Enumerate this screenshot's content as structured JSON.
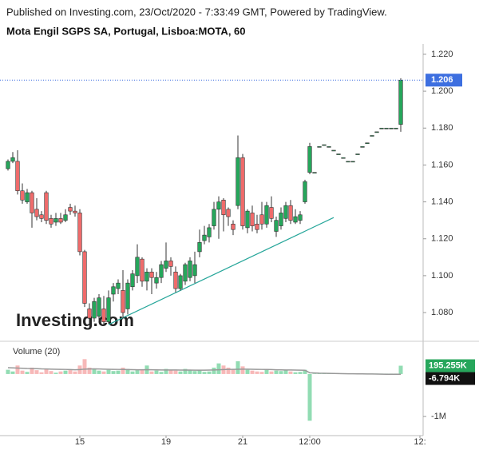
{
  "published": "Published on Investing.com, 23/Oct/2020 - 7:33:49 GMT, Powered by TradingView.",
  "chart_data": {
    "type": "candlestick",
    "title": "Mota Engil SGPS SA, Portugal, Lisboa:MOTA, 60",
    "watermark": "Investing.com",
    "categories": [
      null,
      null,
      null,
      null,
      null,
      null,
      null,
      null,
      null,
      null,
      null,
      null,
      null,
      null,
      null,
      "15",
      null,
      null,
      null,
      null,
      null,
      null,
      null,
      null,
      null,
      null,
      null,
      null,
      null,
      null,
      null,
      null,
      null,
      "19",
      null,
      null,
      null,
      null,
      null,
      null,
      null,
      null,
      null,
      null,
      null,
      null,
      null,
      null,
      null,
      "21",
      null,
      null,
      null,
      null,
      null,
      null,
      null,
      null,
      null,
      null,
      null,
      null,
      null,
      "12:00",
      null,
      null,
      null,
      null,
      null,
      null,
      null,
      null,
      null,
      null,
      null,
      null,
      null,
      null,
      null,
      null,
      null,
      null,
      null,
      null,
      null,
      null,
      "12:"
    ],
    "open": [
      1.158,
      1.162,
      1.162,
      1.146,
      1.14,
      1.145,
      1.136,
      1.133,
      1.145,
      1.131,
      1.129,
      1.131,
      1.13,
      1.137,
      1.135,
      1.134,
      1.113,
      1.082,
      1.077,
      1.078,
      1.082,
      1.075,
      1.09,
      1.093,
      1.092,
      1.082,
      1.094,
      1.1,
      1.109,
      1.097,
      1.102,
      1.096,
      1.099,
      1.104,
      1.108,
      1.102,
      1.093,
      1.097,
      1.099,
      1.1,
      1.113,
      1.119,
      1.121,
      1.127,
      1.136,
      1.141,
      1.136,
      1.128,
      1.138,
      1.164,
      1.126,
      1.134,
      1.128,
      1.133,
      1.128,
      1.137,
      1.124,
      1.127,
      1.131,
      1.138,
      1.129,
      1.13,
      1.14,
      1.156,
      1.156,
      1.17,
      1.171,
      1.17,
      1.168,
      1.166,
      1.164,
      1.162,
      1.162,
      1.166,
      1.17,
      1.172,
      1.176,
      1.178,
      1.18,
      1.18,
      1.18,
      1.18,
      1.182,
      null,
      null,
      null,
      null
    ],
    "high": [
      1.163,
      1.167,
      1.168,
      1.15,
      1.147,
      1.146,
      1.142,
      1.135,
      1.146,
      1.133,
      1.134,
      1.134,
      1.136,
      1.139,
      1.138,
      1.136,
      1.114,
      1.085,
      1.088,
      1.09,
      1.089,
      1.092,
      1.096,
      1.098,
      1.103,
      1.098,
      1.103,
      1.117,
      1.11,
      1.104,
      1.104,
      1.102,
      1.108,
      1.118,
      1.11,
      1.105,
      1.101,
      1.107,
      1.11,
      1.113,
      1.125,
      1.127,
      1.128,
      1.14,
      1.143,
      1.142,
      1.137,
      1.13,
      1.176,
      1.166,
      1.136,
      1.138,
      1.133,
      1.14,
      1.14,
      1.143,
      1.132,
      1.137,
      1.14,
      1.141,
      1.136,
      1.135,
      1.152,
      1.172,
      1.156,
      1.17,
      1.171,
      1.17,
      1.168,
      1.166,
      1.164,
      1.162,
      1.162,
      1.166,
      1.17,
      1.172,
      1.176,
      1.178,
      1.18,
      1.18,
      1.18,
      1.18,
      1.207,
      null,
      null,
      null,
      null
    ],
    "low": [
      1.157,
      1.161,
      1.144,
      1.139,
      1.139,
      1.126,
      1.13,
      1.129,
      1.128,
      1.126,
      1.127,
      1.128,
      1.129,
      1.133,
      1.132,
      1.111,
      1.083,
      1.073,
      1.075,
      1.076,
      1.073,
      1.074,
      1.086,
      1.09,
      1.077,
      1.079,
      1.092,
      1.096,
      1.094,
      1.092,
      1.09,
      1.093,
      1.096,
      1.102,
      1.1,
      1.091,
      1.092,
      1.095,
      1.097,
      1.096,
      1.11,
      1.117,
      1.118,
      1.125,
      1.12,
      1.124,
      1.127,
      1.122,
      1.136,
      1.125,
      1.123,
      1.124,
      1.123,
      1.125,
      1.126,
      1.129,
      1.121,
      1.125,
      1.129,
      1.128,
      1.128,
      1.128,
      1.139,
      1.155,
      1.156,
      1.17,
      1.171,
      1.17,
      1.168,
      1.166,
      1.164,
      1.162,
      1.162,
      1.166,
      1.17,
      1.172,
      1.176,
      1.178,
      1.18,
      1.18,
      1.18,
      1.18,
      1.178,
      null,
      null,
      null,
      null
    ],
    "close": [
      1.162,
      1.164,
      1.146,
      1.141,
      1.145,
      1.134,
      1.132,
      1.131,
      1.13,
      1.128,
      1.131,
      1.129,
      1.133,
      1.135,
      1.134,
      1.113,
      1.085,
      1.077,
      1.086,
      1.088,
      1.075,
      1.088,
      1.094,
      1.096,
      1.08,
      1.096,
      1.101,
      1.11,
      1.097,
      1.102,
      1.099,
      1.099,
      1.106,
      1.108,
      1.105,
      1.093,
      1.1,
      1.106,
      1.108,
      1.106,
      1.118,
      1.122,
      1.126,
      1.136,
      1.14,
      1.133,
      1.132,
      1.125,
      1.164,
      1.127,
      1.135,
      1.127,
      1.125,
      1.128,
      1.138,
      1.131,
      1.13,
      1.134,
      1.138,
      1.13,
      1.132,
      1.133,
      1.151,
      1.17,
      1.156,
      1.17,
      1.171,
      1.17,
      1.168,
      1.166,
      1.164,
      1.162,
      1.162,
      1.166,
      1.17,
      1.172,
      1.176,
      1.178,
      1.18,
      1.18,
      1.18,
      1.18,
      1.206,
      null,
      null,
      null,
      null
    ],
    "up_color": "#26a65b",
    "down_color": "#ef6b6b",
    "last_price_color": "#3d6fe0",
    "ylim": [
      1.0653,
      1.2256
    ],
    "yticks": [
      {
        "value": 1.08,
        "label": "1.080"
      },
      {
        "value": 1.1,
        "label": "1.100"
      },
      {
        "value": 1.12,
        "label": "1.120"
      },
      {
        "value": 1.14,
        "label": "1.140"
      },
      {
        "value": 1.16,
        "label": "1.160"
      },
      {
        "value": 1.18,
        "label": "1.180"
      },
      {
        "value": 1.2,
        "label": "1.200"
      },
      {
        "value": 1.22,
        "label": "1.220"
      }
    ],
    "trendline": {
      "x": [
        21,
        68
      ],
      "y": [
        1.0735,
        1.1315
      ],
      "color": "#26a69a"
    },
    "volume_title": "Volume (20)",
    "volume": [
      100000,
      60000,
      200000,
      80000,
      50000,
      150000,
      90000,
      40000,
      120000,
      70000,
      30000,
      60000,
      80000,
      90000,
      60000,
      200000,
      350000,
      150000,
      120000,
      80000,
      60000,
      100000,
      70000,
      80000,
      150000,
      120000,
      60000,
      90000,
      100000,
      200000,
      60000,
      80000,
      50000,
      120000,
      100000,
      80000,
      60000,
      120000,
      90000,
      70000,
      100000,
      50000,
      60000,
      150000,
      250000,
      200000,
      150000,
      100000,
      300000,
      180000,
      100000,
      80000,
      60000,
      50000,
      120000,
      60000,
      80000,
      70000,
      90000,
      60000,
      40000,
      50000,
      100000,
      -1100000,
      10000,
      10000,
      10000,
      10000,
      10000,
      10000,
      10000,
      10000,
      10000,
      10000,
      10000,
      10000,
      10000,
      10000,
      10000,
      10000,
      10000,
      10000,
      195255,
      null,
      null,
      null,
      null
    ],
    "volume_ma": [
      150000,
      145000,
      140000,
      135000,
      130000,
      128000,
      125000,
      120000,
      118000,
      115000,
      112000,
      110000,
      108000,
      105000,
      100000,
      105000,
      115000,
      118000,
      120000,
      118000,
      115000,
      112000,
      110000,
      108000,
      106000,
      104000,
      102000,
      100000,
      100000,
      102000,
      100000,
      98000,
      96000,
      95000,
      95000,
      94000,
      92000,
      92000,
      92000,
      90000,
      90000,
      90000,
      92000,
      95000,
      100000,
      105000,
      108000,
      110000,
      112000,
      115000,
      115000,
      112000,
      110000,
      108000,
      106000,
      104000,
      100000,
      98000,
      96000,
      94000,
      92000,
      90000,
      88000,
      30000,
      25000,
      20000,
      18000,
      15000,
      12000,
      10000,
      8000,
      6000,
      5000,
      4000,
      3000,
      2000,
      0,
      -2000,
      -4000,
      -5000,
      -6000,
      -6500,
      -6794,
      null,
      null,
      null,
      null
    ],
    "volume_up_color": "#92dcb3",
    "volume_down_color": "#f7b8b8",
    "volume_ma_color": "#999999",
    "vlim": [
      -1450000,
      770000
    ],
    "vticks": [
      {
        "value": -1000000,
        "label": "-1M"
      }
    ],
    "volume_tags": [
      {
        "value": 195255,
        "label": "195.255K",
        "color": "#26a65b"
      },
      {
        "value": -6794,
        "label": "-6.794K",
        "color": "#111111"
      }
    ]
  }
}
